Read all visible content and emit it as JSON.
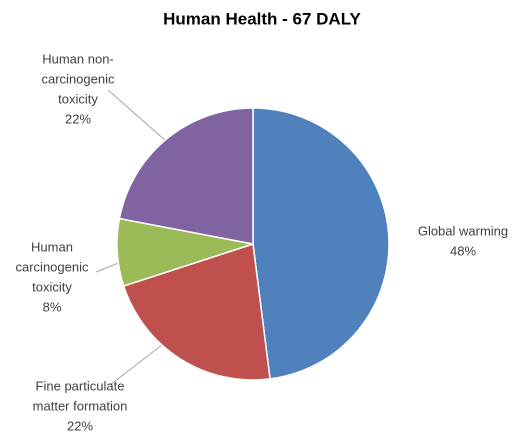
{
  "chart_data": {
    "type": "pie",
    "title": "Human Health - 67 DALY",
    "categories": [
      [
        "Global warming"
      ],
      [
        "Fine particulate",
        "matter formation"
      ],
      [
        "Human",
        "carcinogenic",
        "toxicity"
      ],
      [
        "Human non-",
        "carcinogenic",
        "toxicity"
      ]
    ],
    "values": [
      48,
      22,
      8,
      22
    ],
    "value_labels": [
      "48%",
      "22%",
      "8%",
      "22%"
    ],
    "colors": [
      "#4f81bd",
      "#c0504d",
      "#9bbb59",
      "#8064a2"
    ]
  }
}
